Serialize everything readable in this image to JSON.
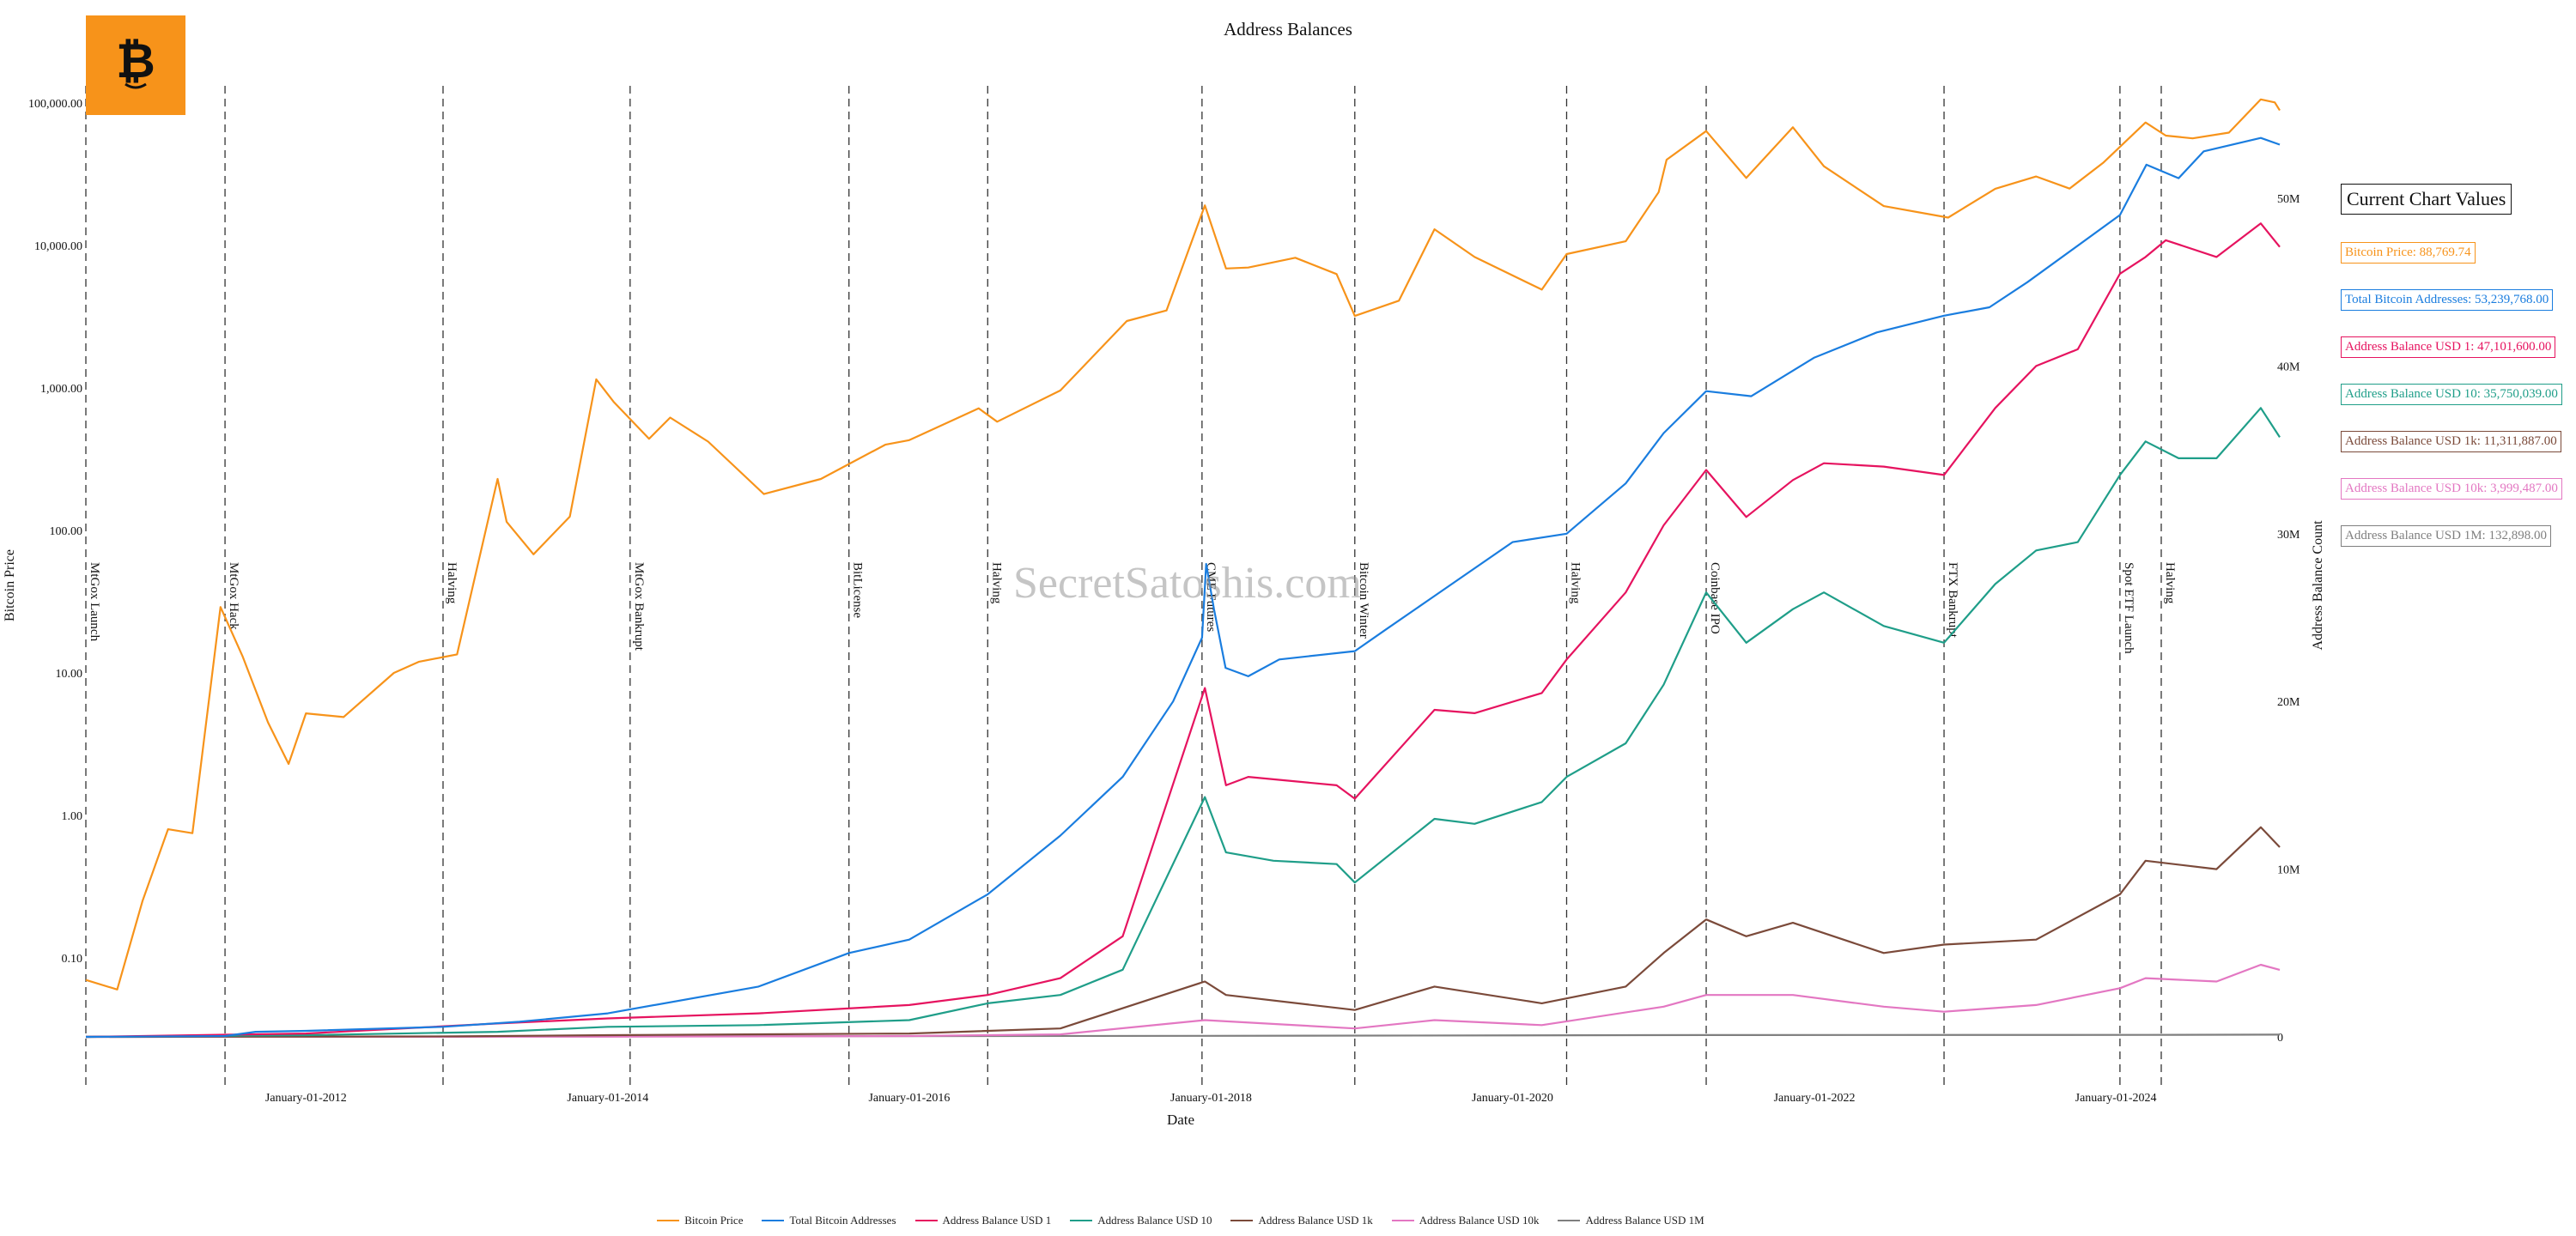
{
  "chart_data": {
    "type": "line",
    "title": "Address Balances",
    "xlabel": "Date",
    "ylabel_left": "Bitcoin Price",
    "ylabel_right": "Address Balance Count",
    "y_left_scale": "log",
    "y_left_range": [
      0.05,
      250000
    ],
    "y_left_ticks": [
      0.1,
      1,
      10,
      100,
      1000,
      10000,
      100000
    ],
    "y_left_tick_labels": [
      "0.10",
      "1.00",
      "10.00",
      "100.00",
      "1,000.00",
      "10,000.00",
      "100,000.00"
    ],
    "y_right_range": [
      0,
      56000000
    ],
    "y_right_ticks": [
      0,
      10000000,
      20000000,
      30000000,
      40000000,
      50000000
    ],
    "y_right_tick_labels": [
      "0",
      "10M",
      "20M",
      "30M",
      "40M",
      "50M"
    ],
    "x_range": [
      "2010-07-17",
      "2025-02-01"
    ],
    "x_tick_labels": [
      {
        "date": "2012-01-01",
        "label": "January-01-2012"
      },
      {
        "date": "2014-01-01",
        "label": "January-01-2014"
      },
      {
        "date": "2016-01-01",
        "label": "January-01-2016"
      },
      {
        "date": "2018-01-01",
        "label": "January-01-2018"
      },
      {
        "date": "2020-01-01",
        "label": "January-01-2020"
      },
      {
        "date": "2022-01-01",
        "label": "January-01-2022"
      },
      {
        "date": "2024-01-01",
        "label": "January-01-2024"
      }
    ],
    "grid": false,
    "legend_position": "bottom",
    "events": [
      {
        "date": "2010-07-17",
        "label": "MtGox Launch"
      },
      {
        "date": "2011-06-19",
        "label": "MtGox Hack"
      },
      {
        "date": "2012-11-28",
        "label": "Halving"
      },
      {
        "date": "2014-02-24",
        "label": "MtGox Bankrupt"
      },
      {
        "date": "2015-08-08",
        "label": "BitLicense"
      },
      {
        "date": "2016-07-09",
        "label": "Halving"
      },
      {
        "date": "2017-12-10",
        "label": "CME Futures"
      },
      {
        "date": "2018-12-15",
        "label": "Bitcoin Winter"
      },
      {
        "date": "2020-05-11",
        "label": "Halving"
      },
      {
        "date": "2021-04-14",
        "label": "Coinbase IPO"
      },
      {
        "date": "2022-11-11",
        "label": "FTX Bankrupt"
      },
      {
        "date": "2024-01-11",
        "label": "Spot ETF Launch"
      },
      {
        "date": "2024-04-20",
        "label": "Halving"
      }
    ],
    "series": [
      {
        "name": "Bitcoin Price",
        "color": "#f7931a",
        "axis": "left",
        "x": [
          "2010-07-17",
          "2010-10-01",
          "2010-12-01",
          "2011-02-01",
          "2011-04-01",
          "2011-06-08",
          "2011-08-01",
          "2011-10-01",
          "2011-11-20",
          "2012-01-01",
          "2012-04-01",
          "2012-08-01",
          "2012-10-01",
          "2013-01-01",
          "2013-04-09",
          "2013-05-01",
          "2013-07-05",
          "2013-10-01",
          "2013-12-04",
          "2014-01-15",
          "2014-04-11",
          "2014-06-01",
          "2014-09-01",
          "2015-01-14",
          "2015-06-01",
          "2015-11-04",
          "2016-01-01",
          "2016-06-17",
          "2016-08-01",
          "2017-01-01",
          "2017-06-11",
          "2017-09-15",
          "2017-12-17",
          "2018-02-06",
          "2018-04-01",
          "2018-07-24",
          "2018-11-01",
          "2018-12-15",
          "2019-04-01",
          "2019-06-26",
          "2019-10-01",
          "2020-03-12",
          "2020-05-11",
          "2020-10-01",
          "2020-12-20",
          "2021-01-08",
          "2021-04-14",
          "2021-07-20",
          "2021-11-10",
          "2022-01-24",
          "2022-06-18",
          "2022-11-21",
          "2023-03-15",
          "2023-06-22",
          "2023-09-11",
          "2023-12-01",
          "2024-03-13",
          "2024-05-01",
          "2024-07-05",
          "2024-10-01",
          "2024-12-17",
          "2025-01-20",
          "2025-02-01"
        ],
        "values": [
          0.07,
          0.06,
          0.25,
          0.8,
          0.75,
          29,
          13,
          4.5,
          2.3,
          5.2,
          4.9,
          10,
          12,
          13.5,
          230,
          115,
          68,
          125,
          1150,
          800,
          440,
          620,
          420,
          180,
          230,
          400,
          430,
          720,
          580,
          960,
          2950,
          3500,
          19100,
          6900,
          7000,
          8200,
          6300,
          3200,
          4100,
          13000,
          8300,
          4900,
          8700,
          10700,
          23700,
          40000,
          63500,
          29800,
          67500,
          36000,
          18900,
          15700,
          25000,
          30500,
          25100,
          38000,
          73000,
          59000,
          56500,
          62000,
          106000,
          101000,
          88760
        ]
      },
      {
        "name": "Total Bitcoin Addresses",
        "color": "#1a7ddf",
        "axis": "right",
        "x": [
          "2010-07-17",
          "2011-06-19",
          "2011-09-01",
          "2012-01-01",
          "2012-11-28",
          "2013-06-01",
          "2014-01-01",
          "2015-01-01",
          "2015-08-08",
          "2016-01-01",
          "2016-07-09",
          "2017-01-01",
          "2017-06-01",
          "2017-10-01",
          "2017-12-10",
          "2017-12-20",
          "2018-01-08",
          "2018-02-05",
          "2018-04-01",
          "2018-06-15",
          "2018-12-15",
          "2019-03-01",
          "2019-06-15",
          "2020-01-01",
          "2020-05-11",
          "2020-10-01",
          "2021-01-01",
          "2021-04-14",
          "2021-08-01",
          "2022-01-01",
          "2022-06-01",
          "2022-11-11",
          "2023-03-01",
          "2023-06-01",
          "2024-01-11",
          "2024-03-15",
          "2024-06-01",
          "2024-08-01",
          "2024-12-17",
          "2025-02-01"
        ],
        "values": [
          0,
          50000,
          300000,
          360000,
          600000,
          900000,
          1400000,
          3000000,
          5000000,
          5800000,
          8500000,
          12000000,
          15500000,
          20000000,
          23800000,
          28200000,
          25500000,
          22000000,
          21500000,
          22500000,
          23000000,
          24300000,
          26100000,
          29500000,
          30000000,
          33000000,
          36000000,
          38500000,
          38200000,
          40500000,
          42000000,
          43000000,
          43500000,
          45000000,
          49000000,
          52000000,
          51200000,
          52800000,
          53600000,
          53200000
        ]
      },
      {
        "name": "Address Balance USD 1",
        "color": "#e6135f",
        "axis": "right",
        "x": [
          "2010-07-17",
          "2012-01-01",
          "2013-04-09",
          "2014-01-01",
          "2015-01-01",
          "2016-01-01",
          "2016-07-09",
          "2017-01-01",
          "2017-06-01",
          "2017-12-17",
          "2018-02-06",
          "2018-04-01",
          "2018-11-01",
          "2018-12-15",
          "2019-06-26",
          "2019-10-01",
          "2020-03-12",
          "2020-05-11",
          "2020-10-01",
          "2021-01-01",
          "2021-04-14",
          "2021-07-20",
          "2021-11-10",
          "2022-01-24",
          "2022-06-18",
          "2022-11-11",
          "2023-03-15",
          "2023-06-22",
          "2023-10-01",
          "2024-01-11",
          "2024-03-13",
          "2024-05-01",
          "2024-09-01",
          "2024-12-17",
          "2025-02-01"
        ],
        "values": [
          0,
          200000,
          800000,
          1100000,
          1400000,
          1900000,
          2500000,
          3500000,
          6000000,
          20800000,
          15000000,
          15500000,
          15000000,
          14200000,
          19500000,
          19300000,
          20500000,
          22500000,
          26500000,
          30500000,
          33800000,
          31000000,
          33200000,
          34200000,
          34000000,
          33500000,
          37500000,
          40000000,
          41000000,
          45500000,
          46500000,
          47500000,
          46500000,
          48500000,
          47100000
        ]
      },
      {
        "name": "Address Balance USD 10",
        "color": "#1f9e89",
        "axis": "right",
        "x": [
          "2010-07-17",
          "2012-01-01",
          "2013-04-09",
          "2014-01-01",
          "2015-01-01",
          "2016-01-01",
          "2016-07-09",
          "2017-01-01",
          "2017-06-01",
          "2017-12-17",
          "2018-02-06",
          "2018-06-01",
          "2018-11-01",
          "2018-12-15",
          "2019-06-26",
          "2019-10-01",
          "2020-03-12",
          "2020-05-11",
          "2020-10-01",
          "2021-01-01",
          "2021-04-14",
          "2021-07-20",
          "2021-11-10",
          "2022-01-24",
          "2022-06-18",
          "2022-11-11",
          "2023-03-15",
          "2023-06-22",
          "2023-10-01",
          "2024-01-11",
          "2024-03-13",
          "2024-06-01",
          "2024-09-01",
          "2024-12-17",
          "2025-02-01"
        ],
        "values": [
          0,
          100000,
          300000,
          600000,
          700000,
          1000000,
          2000000,
          2500000,
          4000000,
          14300000,
          11000000,
          10500000,
          10300000,
          9200000,
          13000000,
          12700000,
          14000000,
          15500000,
          17500000,
          21000000,
          26500000,
          23500000,
          25500000,
          26500000,
          24500000,
          23500000,
          27000000,
          29000000,
          29500000,
          33500000,
          35500000,
          34500000,
          34500000,
          37500000,
          35750000
        ]
      },
      {
        "name": "Address Balance USD 1k",
        "color": "#7b4a3a",
        "axis": "right",
        "x": [
          "2010-07-17",
          "2013-01-01",
          "2014-01-01",
          "2016-01-01",
          "2017-01-01",
          "2017-12-17",
          "2018-02-06",
          "2018-12-15",
          "2019-06-26",
          "2020-03-12",
          "2020-10-01",
          "2021-01-01",
          "2021-04-14",
          "2021-07-20",
          "2021-11-10",
          "2022-06-18",
          "2022-11-11",
          "2023-06-22",
          "2024-01-11",
          "2024-03-13",
          "2024-09-01",
          "2024-12-17",
          "2025-02-01"
        ],
        "values": [
          0,
          30000,
          100000,
          200000,
          500000,
          3300000,
          2500000,
          1600000,
          3000000,
          2000000,
          3000000,
          5000000,
          7000000,
          6000000,
          6800000,
          5000000,
          5500000,
          5800000,
          8500000,
          10500000,
          10000000,
          12500000,
          11311887
        ]
      },
      {
        "name": "Address Balance USD 10k",
        "color": "#e377c2",
        "axis": "right",
        "x": [
          "2010-07-17",
          "2014-01-01",
          "2016-01-01",
          "2017-01-01",
          "2017-12-17",
          "2018-12-15",
          "2019-06-26",
          "2020-03-12",
          "2021-01-01",
          "2021-04-14",
          "2021-11-10",
          "2022-06-18",
          "2022-11-11",
          "2023-06-22",
          "2024-01-11",
          "2024-03-13",
          "2024-09-01",
          "2024-12-17",
          "2025-02-01"
        ],
        "values": [
          0,
          10000,
          50000,
          150000,
          1000000,
          500000,
          1000000,
          700000,
          1800000,
          2500000,
          2500000,
          1800000,
          1500000,
          1900000,
          2900000,
          3500000,
          3300000,
          4300000,
          3999487
        ]
      },
      {
        "name": "Address Balance USD 1M",
        "color": "#7f7f7f",
        "axis": "right",
        "x": [
          "2010-07-17",
          "2017-12-17",
          "2021-04-14",
          "2024-03-13",
          "2025-02-01"
        ],
        "values": [
          0,
          60000,
          110000,
          120000,
          132898
        ]
      }
    ]
  },
  "current_values": {
    "title": "Current Chart Values",
    "items": [
      {
        "label": "Bitcoin Price: 88,769.74",
        "color": "#f7931a"
      },
      {
        "label": "Total Bitcoin Addresses: 53,239,768.00",
        "color": "#1a7ddf"
      },
      {
        "label": "Address Balance USD 1: 47,101,600.00",
        "color": "#e6135f"
      },
      {
        "label": "Address Balance USD 10: 35,750,039.00",
        "color": "#1f9e89"
      },
      {
        "label": "Address Balance USD 1k: 11,311,887.00",
        "color": "#7b4a3a"
      },
      {
        "label": "Address Balance USD 10k: 3,999,487.00",
        "color": "#e377c2"
      },
      {
        "label": "Address Balance USD 1M: 132,898.00",
        "color": "#7f7f7f"
      }
    ]
  },
  "watermark": "SecretSatoshis.com",
  "logo_icon": "bitcoin-logo-icon"
}
